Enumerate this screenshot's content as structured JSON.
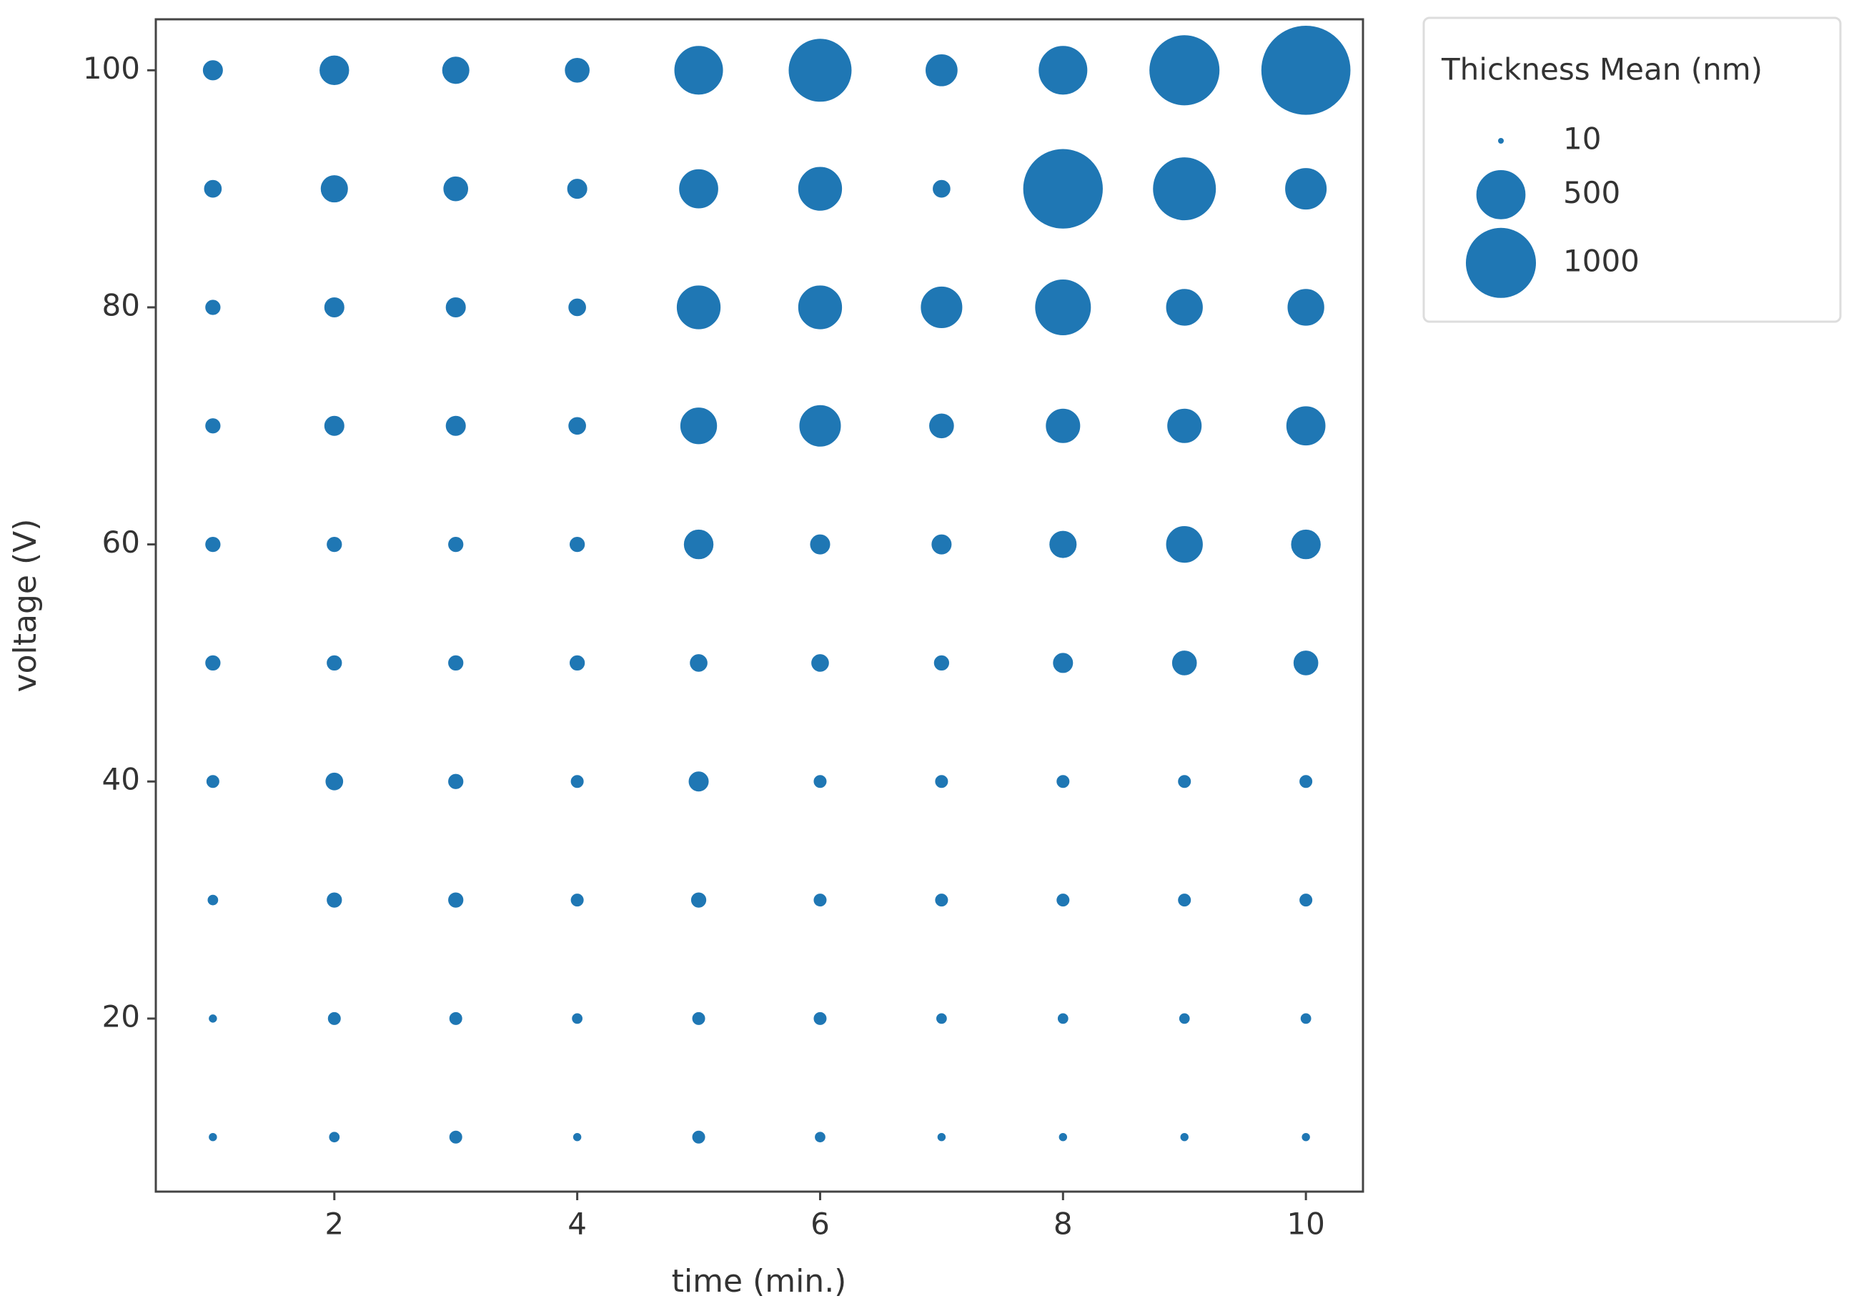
{
  "chart_data": {
    "type": "bubble",
    "x_label": "time (min.)",
    "y_label": "voltage (V)",
    "xlim": [
      0.53,
      10.47
    ],
    "ylim": [
      5.4,
      104.3
    ],
    "xticks": [
      2,
      4,
      6,
      8,
      10
    ],
    "yticks": [
      20,
      40,
      60,
      80,
      100
    ],
    "legend_title": "Thickness Mean (nm)",
    "legend_sizes": [
      10,
      500,
      1000
    ],
    "legend_position": "outside-upper-right",
    "series": [
      {
        "color": "#1f77b4",
        "x": [
          1,
          2,
          3,
          4,
          5,
          6,
          7,
          8,
          9,
          10,
          1,
          2,
          3,
          4,
          5,
          6,
          7,
          8,
          9,
          10,
          1,
          2,
          3,
          4,
          5,
          6,
          7,
          8,
          9,
          10,
          1,
          2,
          3,
          4,
          5,
          6,
          7,
          8,
          9,
          10,
          1,
          2,
          3,
          4,
          5,
          6,
          7,
          8,
          9,
          10,
          1,
          2,
          3,
          4,
          5,
          6,
          7,
          8,
          9,
          10,
          1,
          2,
          3,
          4,
          5,
          6,
          7,
          8,
          9,
          10,
          1,
          2,
          3,
          4,
          5,
          6,
          7,
          8,
          9,
          10,
          1,
          2,
          3,
          4,
          5,
          6,
          7,
          8,
          9,
          10,
          1,
          2,
          3,
          4,
          5,
          6,
          7,
          8,
          9,
          10
        ],
        "y": [
          100,
          100,
          100,
          100,
          100,
          100,
          100,
          100,
          100,
          100,
          90,
          90,
          90,
          90,
          90,
          90,
          90,
          90,
          90,
          90,
          80,
          80,
          80,
          80,
          80,
          80,
          80,
          80,
          80,
          80,
          70,
          70,
          70,
          70,
          70,
          70,
          70,
          70,
          70,
          70,
          60,
          60,
          60,
          60,
          60,
          60,
          60,
          60,
          60,
          60,
          50,
          50,
          50,
          50,
          50,
          50,
          50,
          50,
          50,
          50,
          40,
          40,
          40,
          40,
          40,
          40,
          40,
          40,
          40,
          40,
          30,
          30,
          30,
          30,
          30,
          30,
          30,
          30,
          30,
          30,
          20,
          20,
          20,
          20,
          20,
          20,
          20,
          20,
          20,
          20,
          10,
          10,
          10,
          10,
          10,
          10,
          10,
          10,
          10,
          10
        ],
        "size": [
          90,
          188,
          160,
          134,
          490,
          809,
          218,
          490,
          1000,
          1603,
          71,
          160,
          134,
          90,
          321,
          400,
          71,
          1283,
          809,
          360,
          54,
          90,
          90,
          71,
          400,
          400,
          360,
          639,
          284,
          284,
          54,
          90,
          90,
          71,
          284,
          360,
          134,
          250,
          250,
          321,
          54,
          54,
          54,
          54,
          188,
          90,
          90,
          160,
          284,
          188,
          54,
          54,
          54,
          54,
          71,
          71,
          54,
          90,
          134,
          134,
          40,
          71,
          54,
          40,
          90,
          40,
          40,
          40,
          40,
          40,
          28,
          54,
          54,
          40,
          54,
          40,
          40,
          40,
          40,
          40,
          18,
          40,
          40,
          28,
          40,
          40,
          28,
          28,
          28,
          28,
          18,
          28,
          40,
          18,
          40,
          28,
          18,
          18,
          18,
          18
        ]
      }
    ]
  }
}
